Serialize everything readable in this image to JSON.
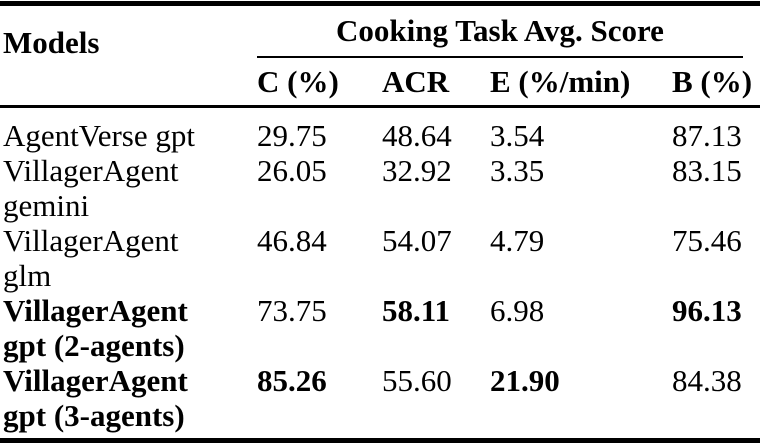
{
  "colors": {
    "text": "#000000",
    "background": "#ffffff",
    "rules": "#000000"
  },
  "table": {
    "models_header": "Models",
    "group_header": "Cooking Task Avg. Score",
    "sub_headers": [
      "C (%)",
      "ACR",
      "E (%/min)",
      "B (%)"
    ],
    "rows": [
      {
        "model": "AgentVerse gpt",
        "model_bold": false,
        "values": [
          "29.75",
          "48.64",
          "3.54",
          "87.13"
        ],
        "bold": [
          false,
          false,
          false,
          false
        ]
      },
      {
        "model": "VillagerAgent gemini",
        "model_bold": false,
        "values": [
          "26.05",
          "32.92",
          "3.35",
          "83.15"
        ],
        "bold": [
          false,
          false,
          false,
          false
        ]
      },
      {
        "model": "VillagerAgent glm",
        "model_bold": false,
        "values": [
          "46.84",
          "54.07",
          "4.79",
          "75.46"
        ],
        "bold": [
          false,
          false,
          false,
          false
        ]
      },
      {
        "model": "VillagerAgent gpt (2-agents)",
        "model_bold": true,
        "values": [
          "73.75",
          "58.11",
          "6.98",
          "96.13"
        ],
        "bold": [
          false,
          true,
          false,
          true
        ]
      },
      {
        "model": "VillagerAgent gpt (3-agents)",
        "model_bold": true,
        "values": [
          "85.26",
          "55.60",
          "21.90",
          "84.38"
        ],
        "bold": [
          true,
          false,
          true,
          false
        ]
      }
    ]
  }
}
